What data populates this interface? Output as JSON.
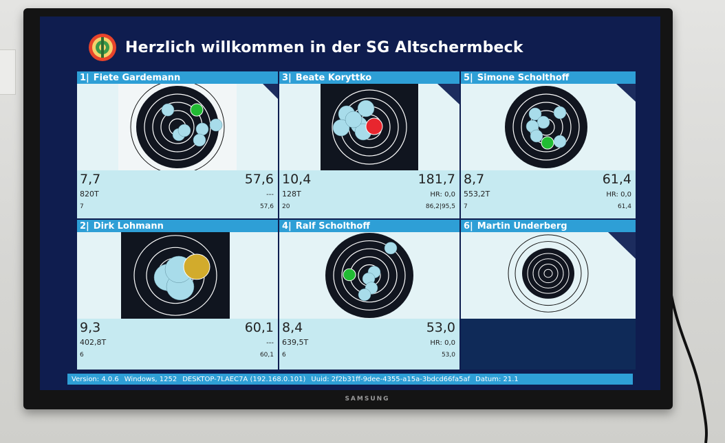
{
  "header": {
    "title": "Herzlich willkommen in der SG Altschermbeck"
  },
  "tv_brand": "SAMSUNG",
  "lanes": [
    {
      "number": "1|",
      "name": "Fiete Gardemann",
      "last_shot": "7,7",
      "total": "57,6",
      "teiler": "820T",
      "hr": "---",
      "series_left": "7",
      "series_right": "57,6"
    },
    {
      "number": "3|",
      "name": "Beate Koryttko",
      "last_shot": "10,4",
      "total": "181,7",
      "teiler": "128T",
      "hr": "HR: 0,0",
      "series_left": "20",
      "series_right": "86,2|95,5"
    },
    {
      "number": "5|",
      "name": "Simone Scholthoff",
      "last_shot": "8,7",
      "total": "61,4",
      "teiler": "553,2T",
      "hr": "HR: 0,0",
      "series_left": "7",
      "series_right": "61,4"
    },
    {
      "number": "2|",
      "name": "Dirk Lohmann",
      "last_shot": "9,3",
      "total": "60,1",
      "teiler": "402,8T",
      "hr": "---",
      "series_left": "6",
      "series_right": "60,1"
    },
    {
      "number": "4|",
      "name": "Ralf Scholthoff",
      "last_shot": "8,4",
      "total": "53,0",
      "teiler": "639,5T",
      "hr": "HR: 0,0",
      "series_left": "6",
      "series_right": "53,0"
    },
    {
      "number": "6|",
      "name": "Martin Underberg"
    }
  ],
  "status_bar": {
    "version": "Version: 4.0.6",
    "os": "Windows, 1252",
    "desktop": "DESKTOP-7LAEC7A (192.168.0.101)",
    "uuid": "Uuid: 2f2b31ff-9dee-4355-a15a-3bdcd66fa5af",
    "datum": "Datum: 21.1"
  },
  "colors": {
    "screen_background": "#0f1d4f",
    "lane_header": "#2e9fd6",
    "shot_normal": "#a8dcea",
    "shot_latest_green": "#22bb33",
    "shot_latest_red": "#e8262e",
    "shot_latest_gold": "#d2ab2c"
  }
}
